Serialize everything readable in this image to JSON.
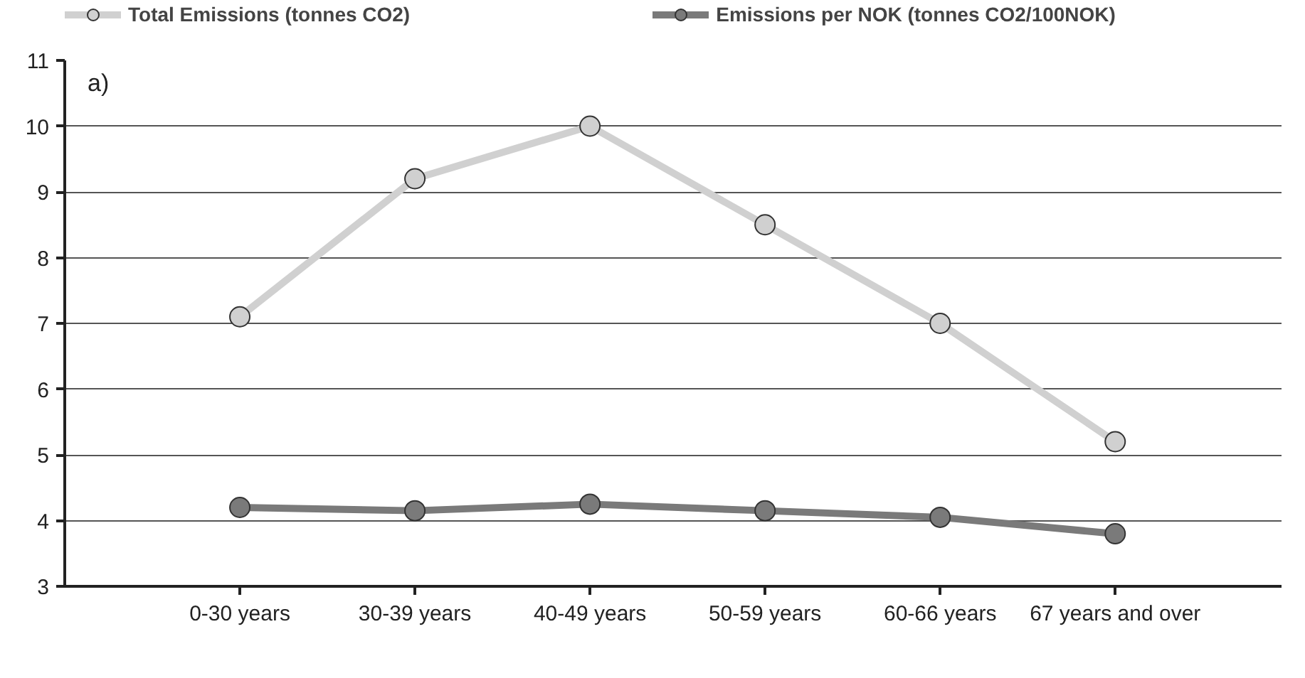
{
  "chart_data": {
    "type": "line",
    "categories": [
      "0-30 years",
      "30-39 years",
      "40-49 years",
      "50-59 years",
      "60-66 years",
      "67 years and over"
    ],
    "series": [
      {
        "name": "Total Emissions (tonnes CO2)",
        "color": "#d0d0d0",
        "values": [
          7.1,
          9.2,
          10.0,
          8.5,
          7.0,
          5.2
        ]
      },
      {
        "name": "Emissions per NOK (tonnes CO2/100NOK)",
        "color": "#7a7a7a",
        "values": [
          4.2,
          4.15,
          4.25,
          4.15,
          4.05,
          3.8
        ]
      }
    ],
    "ylim": [
      3,
      11
    ],
    "yticks": [
      3,
      4,
      5,
      6,
      7,
      8,
      9,
      10,
      11
    ],
    "annotations": [
      "a)"
    ],
    "grid": "y",
    "legend": "top",
    "marker": "circle",
    "line_style": "solid"
  }
}
